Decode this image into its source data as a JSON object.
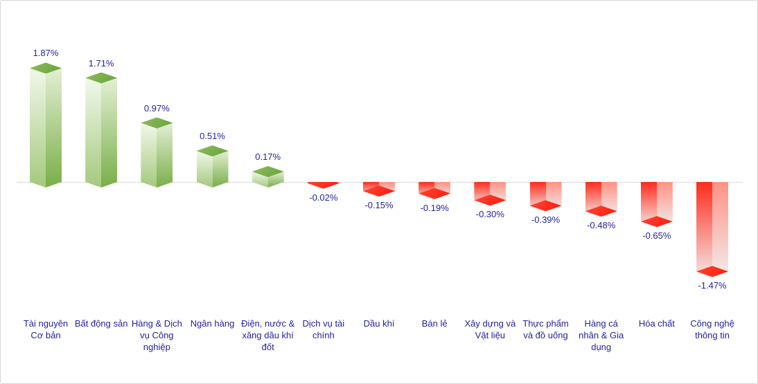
{
  "chart_data": {
    "type": "bar",
    "title": "",
    "subtitle": "",
    "xlabel": "",
    "ylabel": "",
    "unit": "%",
    "legend": "none",
    "grid": "off",
    "baseline": 0,
    "orientation": "vertical-3d",
    "categories": [
      "Tài nguyên\nCơ bản",
      "Bất động sản",
      "Hàng & Dịch\nvụ Công\nnghiệp",
      "Ngân hàng",
      "Điện, nước &\nxăng dầu khí\nđốt",
      "Dịch vụ tài\nchính",
      "Dầu khí",
      "Bán lẻ",
      "Xây dựng và\nVật liệu",
      "Thực phẩm\nvà đồ uống",
      "Hàng cá\nnhân & Gia\ndụng",
      "Hóa chất",
      "Công nghệ\nthông tin"
    ],
    "values": [
      1.87,
      1.71,
      0.97,
      0.51,
      0.17,
      -0.02,
      -0.15,
      -0.19,
      -0.3,
      -0.39,
      -0.48,
      -0.65,
      -1.47
    ],
    "value_labels": [
      "1.87%",
      "1.71%",
      "0.97%",
      "0.51%",
      "0.17%",
      "-0.02%",
      "-0.15%",
      "-0.19%",
      "-0.30%",
      "-0.39%",
      "-0.48%",
      "-0.65%",
      "-1.47%"
    ],
    "colors": {
      "positive_cap_gradient": [
        "#8cbb60",
        "#68a436"
      ],
      "positive_face_left": [
        "#f2f8ea",
        "#a4c97d"
      ],
      "positive_face_right": [
        "#e3efd4",
        "#79ae48"
      ],
      "negative_cap_gradient": [
        "#ff4433",
        "#fb1c0c"
      ],
      "negative_face_left": [
        "#ff2b1b",
        "#f4e6e4"
      ],
      "negative_face_right": [
        "#ff9184",
        "#f1eceb"
      ],
      "label_color": "#2222a0",
      "axis_color": "#d9d9d9",
      "background": "#ffffff",
      "border": "#d6d6d6"
    }
  }
}
